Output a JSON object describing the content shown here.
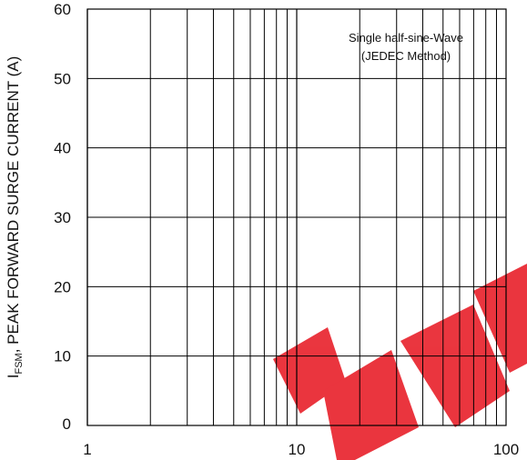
{
  "chart_data": {
    "type": "line",
    "title": "",
    "xlabel": "",
    "ylabel_main": "I",
    "ylabel_sub": "FSM",
    "ylabel_rest": ", PEAK FORWARD SURGE CURRENT (A)",
    "x_scale": "log",
    "xlim": [
      1,
      100
    ],
    "ylim": [
      0,
      60
    ],
    "x_ticks": [
      1,
      10,
      100
    ],
    "x_tick_labels": [
      "1",
      "10",
      "100"
    ],
    "y_ticks": [
      0,
      10,
      20,
      30,
      40,
      50,
      60
    ],
    "y_tick_labels": [
      "0",
      "10",
      "20",
      "30",
      "40",
      "50",
      "60"
    ],
    "grid": true,
    "annotation_lines": [
      "Single half-sine-Wave",
      "(JEDEC Method)"
    ],
    "series": []
  },
  "colors": {
    "axis": "#000000",
    "grid": "#000000",
    "watermark": "#e8202a"
  }
}
